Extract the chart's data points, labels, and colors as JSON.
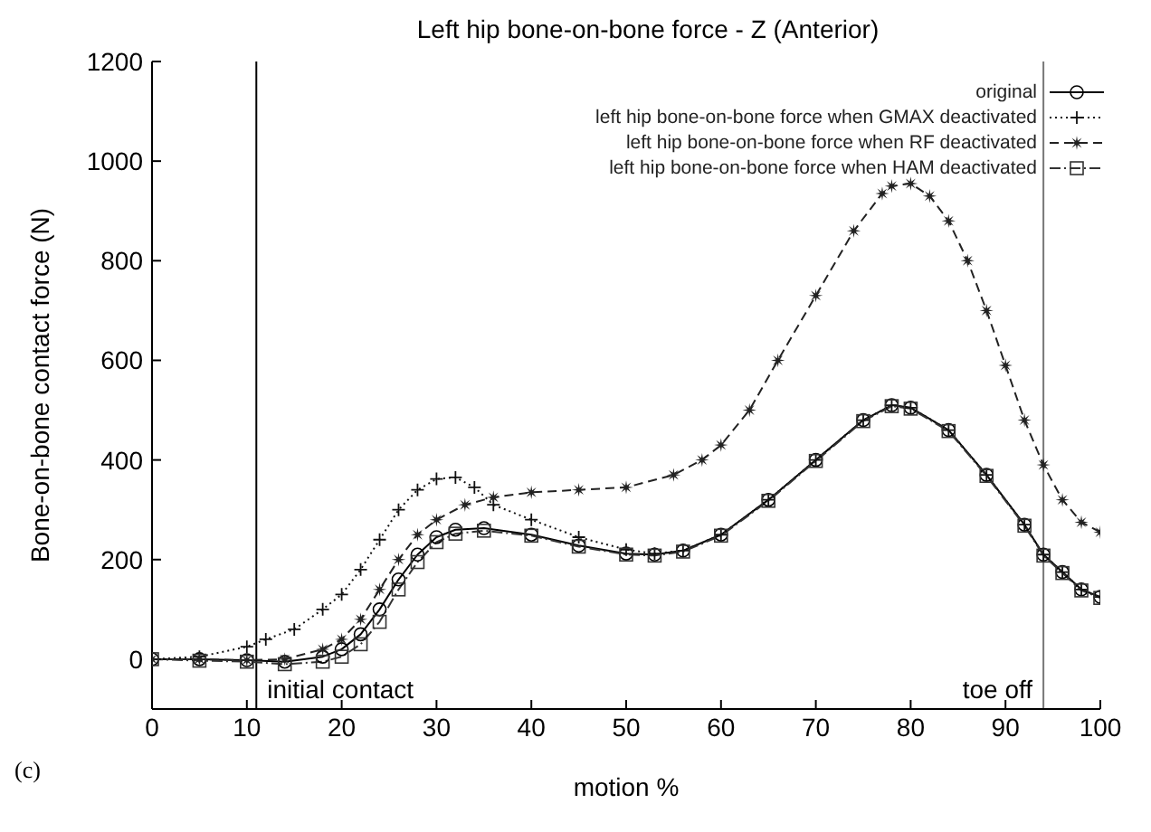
{
  "chart_data": {
    "type": "line",
    "title": "Left hip bone-on-bone force - Z (Anterior)",
    "xlabel": "motion %",
    "ylabel": "Bone-on-bone contact force (N)",
    "xlim": [
      0,
      100
    ],
    "xticks": [
      0,
      10,
      20,
      30,
      40,
      50,
      60,
      70,
      80,
      90,
      100
    ],
    "ylim": [
      -100,
      1200
    ],
    "yticks": [
      0,
      200,
      400,
      600,
      800,
      1000,
      1200
    ],
    "grid": false,
    "legend": "top right",
    "annotations": [
      "(c)"
    ],
    "ref_lines": [
      {
        "axis": "x",
        "value": 11,
        "label": "initial contact"
      },
      {
        "axis": "x",
        "value": 94,
        "label": "toe off"
      }
    ],
    "series": [
      {
        "name": "original",
        "color": "#000000",
        "marker": "circle",
        "line_style": "solid",
        "x": [
          0,
          5,
          10,
          14,
          18,
          20,
          22,
          24,
          26,
          28,
          30,
          32,
          35,
          40,
          45,
          50,
          53,
          56,
          60,
          65,
          70,
          75,
          78,
          80,
          84,
          88,
          92,
          94,
          96,
          98,
          100
        ],
        "values": [
          0,
          0,
          -2,
          -5,
          5,
          20,
          50,
          100,
          160,
          210,
          245,
          260,
          263,
          250,
          228,
          212,
          210,
          218,
          250,
          320,
          400,
          480,
          510,
          505,
          460,
          370,
          270,
          210,
          175,
          140,
          125
        ]
      },
      {
        "name": "left hip bone-on-bone force when GMAX deactivated",
        "color": "#111111",
        "marker": "cross",
        "line_style": "dotted",
        "x": [
          0,
          5,
          10,
          12,
          15,
          18,
          20,
          22,
          24,
          26,
          28,
          30,
          32,
          34,
          36,
          40,
          45,
          50,
          53,
          56,
          60,
          65,
          70,
          75,
          78,
          80,
          84,
          88,
          92,
          94,
          96,
          98,
          100
        ],
        "values": [
          0,
          5,
          25,
          40,
          60,
          100,
          130,
          180,
          240,
          300,
          340,
          362,
          365,
          345,
          310,
          280,
          245,
          220,
          212,
          218,
          250,
          320,
          400,
          480,
          510,
          505,
          460,
          370,
          270,
          210,
          175,
          140,
          125
        ]
      },
      {
        "name": "left hip bone-on-bone force when RF deactivated",
        "color": "#222222",
        "marker": "star",
        "line_style": "dashed",
        "x": [
          0,
          5,
          10,
          14,
          18,
          20,
          22,
          24,
          26,
          28,
          30,
          33,
          36,
          40,
          45,
          50,
          55,
          58,
          60,
          63,
          66,
          70,
          74,
          77,
          78,
          80,
          82,
          84,
          86,
          88,
          90,
          92,
          94,
          96,
          98,
          100
        ],
        "values": [
          0,
          0,
          -2,
          0,
          20,
          40,
          80,
          140,
          200,
          250,
          280,
          310,
          325,
          335,
          340,
          345,
          370,
          400,
          430,
          500,
          600,
          730,
          860,
          935,
          950,
          955,
          930,
          880,
          800,
          700,
          590,
          480,
          390,
          320,
          275,
          255
        ]
      },
      {
        "name": "left hip bone-on-bone force when HAM deactivated",
        "color": "#333333",
        "marker": "square",
        "line_style": "dashdot",
        "x": [
          0,
          5,
          10,
          14,
          18,
          20,
          22,
          24,
          26,
          28,
          30,
          32,
          35,
          40,
          45,
          50,
          53,
          56,
          60,
          65,
          70,
          75,
          78,
          80,
          84,
          88,
          92,
          94,
          96,
          98,
          100
        ],
        "values": [
          0,
          -3,
          -5,
          -10,
          -5,
          5,
          30,
          75,
          140,
          195,
          235,
          252,
          258,
          248,
          226,
          210,
          208,
          216,
          248,
          318,
          398,
          478,
          508,
          503,
          458,
          368,
          268,
          208,
          173,
          138,
          123
        ]
      }
    ]
  }
}
